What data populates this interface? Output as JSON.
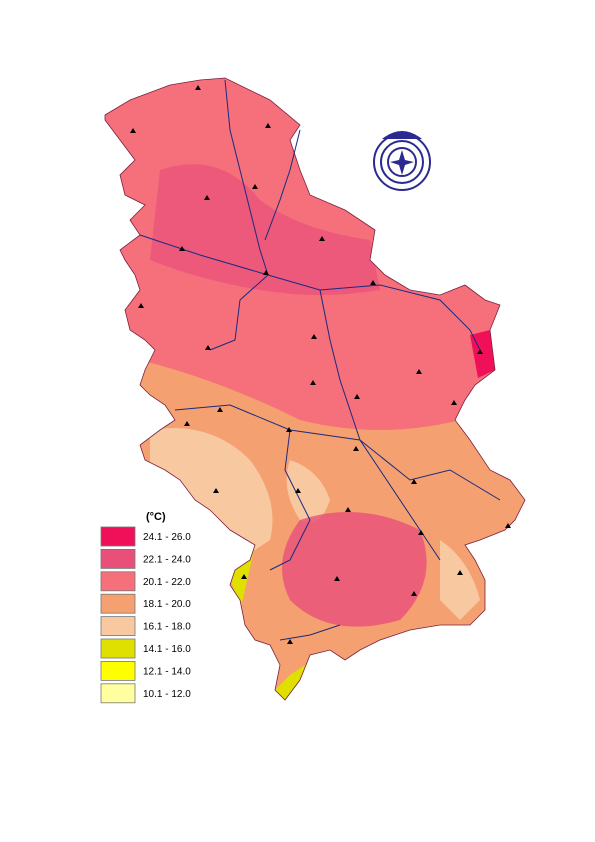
{
  "legend": {
    "title": "(°C)",
    "items": [
      {
        "label": "24.1 - 26.0",
        "color": "#f0105a"
      },
      {
        "label": "22.1 - 24.0",
        "color": "#e8507a"
      },
      {
        "label": "20.1 - 22.0",
        "color": "#f5707a"
      },
      {
        "label": "18.1 - 20.0",
        "color": "#f5a070"
      },
      {
        "label": "16.1 - 18.0",
        "color": "#f8c8a0"
      },
      {
        "label": "14.1 - 16.0",
        "color": "#e0e000"
      },
      {
        "label": "12.1 - 14.0",
        "color": "#ffff00"
      },
      {
        "label": "10.1 - 12.0",
        "color": "#ffffa0"
      }
    ]
  }
}
